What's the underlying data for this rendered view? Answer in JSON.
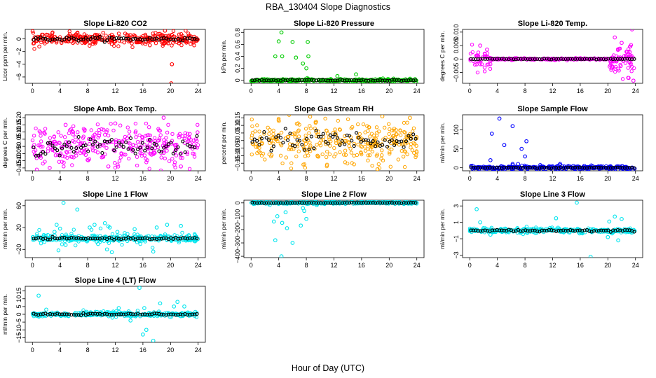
{
  "title": "RBA_130404  Slope Diagnostics",
  "xlabel": "Hour of Day (UTC)",
  "chart_data": [
    {
      "type": "scatter",
      "title": "Slope Li-820 CO2",
      "ylabel": "Licor ppm per min.",
      "xlim": [
        0,
        24
      ],
      "xticks": [
        0,
        4,
        8,
        12,
        16,
        20,
        24
      ],
      "ylim": [
        -7,
        1.5
      ],
      "yticks": [
        0,
        -2,
        -4,
        -6
      ],
      "color": "#ff0000",
      "spread": 0.45,
      "overlay_spread": 0.25,
      "outliers": [
        [
          19.2,
          1.3
        ],
        [
          20.1,
          -7.0
        ],
        [
          20.2,
          -4.0
        ],
        [
          1.0,
          -1.2
        ],
        [
          17.0,
          -1.0
        ],
        [
          6.5,
          0.9
        ]
      ]
    },
    {
      "type": "scatter",
      "title": "Slope Li-820 Pressure",
      "ylabel": "kPa per min.",
      "xlim": [
        0,
        24
      ],
      "xticks": [
        0,
        4,
        8,
        12,
        16,
        20,
        24
      ],
      "ylim": [
        -0.05,
        0.85
      ],
      "yticks": [
        0.0,
        0.2,
        0.4,
        0.6,
        0.8
      ],
      "color": "#00cc00",
      "spread": 0.012,
      "overlay_spread": 0.008,
      "outliers": [
        [
          4.4,
          0.8
        ],
        [
          4.0,
          0.65
        ],
        [
          6.0,
          0.64
        ],
        [
          8.2,
          0.64
        ],
        [
          3.5,
          0.4
        ],
        [
          4.5,
          0.4
        ],
        [
          6.5,
          0.38
        ],
        [
          8.3,
          0.4
        ],
        [
          8.0,
          0.2
        ],
        [
          7.5,
          0.28
        ],
        [
          15.2,
          0.1
        ],
        [
          12.5,
          0.07
        ],
        [
          23.9,
          -0.04
        ],
        [
          5.5,
          -0.02
        ]
      ]
    },
    {
      "type": "scatter",
      "title": "Slope Li-820 Temp.",
      "ylabel": "degrees C per min.",
      "xlim": [
        0,
        24
      ],
      "xticks": [
        0,
        4,
        8,
        12,
        16,
        20,
        24
      ],
      "ylim": [
        -0.009,
        0.011
      ],
      "yticks": [
        0.01,
        0.005,
        0.0,
        -0.005
      ],
      "color": "#ff00ff",
      "spread": 0.0002,
      "overlay_spread": 0.0001,
      "outliers": [
        [
          23.5,
          0.011
        ],
        [
          21.0,
          0.008
        ],
        [
          22.0,
          0.006
        ],
        [
          1.5,
          0.005
        ],
        [
          2.5,
          0.0035
        ],
        [
          23.0,
          -0.007
        ],
        [
          23.7,
          -0.008
        ],
        [
          1.0,
          -0.002
        ],
        [
          20.5,
          -0.004
        ]
      ]
    },
    {
      "type": "scatter",
      "title": "Slope Amb. Box Temp.",
      "ylabel": "degrees C per min.",
      "xlim": [
        0,
        24
      ],
      "xticks": [
        0,
        4,
        8,
        12,
        16,
        20,
        24
      ],
      "ylim": [
        -0.17,
        0.22
      ],
      "yticks": [
        -0.15,
        -0.1,
        -0.05,
        0.0,
        0.05,
        0.1,
        0.15,
        0.2
      ],
      "color": "#ff00ff",
      "spread": 0.07,
      "overlay_spread": 0.05,
      "outliers": [
        [
          19.0,
          0.2
        ],
        [
          12.0,
          0.16
        ],
        [
          4.8,
          0.15
        ],
        [
          2.5,
          -0.15
        ],
        [
          21.5,
          -0.14
        ],
        [
          11.0,
          -0.14
        ]
      ]
    },
    {
      "type": "scatter",
      "title": "Slope Gas Stream RH",
      "ylabel": "percent per min.",
      "xlim": [
        0,
        24
      ],
      "xticks": [
        0,
        4,
        8,
        12,
        16,
        20,
        24
      ],
      "ylim": [
        -0.2,
        0.17
      ],
      "yticks": [
        -0.15,
        -0.1,
        -0.05,
        0.0,
        0.05,
        0.1,
        0.15
      ],
      "color": "#ffa500",
      "spread": 0.07,
      "overlay_spread": 0.05,
      "outliers": [
        [
          5.5,
          0.17
        ],
        [
          19.0,
          0.16
        ],
        [
          18.3,
          -0.19
        ],
        [
          23.0,
          0.15
        ],
        [
          11.0,
          -0.16
        ]
      ]
    },
    {
      "type": "scatter",
      "title": "Slope Sample Flow",
      "ylabel": "ml/min per min.",
      "xlim": [
        0,
        24
      ],
      "xticks": [
        0,
        4,
        8,
        12,
        16,
        20,
        24
      ],
      "ylim": [
        -8,
        140
      ],
      "yticks": [
        0,
        50,
        100
      ],
      "color": "#0000ff",
      "spread": 2.0,
      "overlay_spread": 1.0,
      "outliers": [
        [
          4.3,
          130
        ],
        [
          6.2,
          110
        ],
        [
          3.2,
          90
        ],
        [
          5.0,
          60
        ],
        [
          7.5,
          50
        ],
        [
          8.2,
          70
        ],
        [
          8.0,
          30
        ],
        [
          3.0,
          20
        ],
        [
          7.0,
          10
        ],
        [
          13.0,
          8
        ],
        [
          12.8,
          5
        ],
        [
          11.5,
          4
        ],
        [
          0.2,
          5
        ],
        [
          2.0,
          3
        ],
        [
          15.0,
          5
        ],
        [
          17.6,
          6
        ],
        [
          19.0,
          4
        ]
      ]
    },
    {
      "type": "scatter",
      "title": "Slope Line 1 Flow",
      "ylabel": "ml/min per min.",
      "xlim": [
        0,
        24
      ],
      "xticks": [
        0,
        4,
        8,
        12,
        16,
        20,
        24
      ],
      "ylim": [
        -35,
        70
      ],
      "yticks": [
        -20,
        20,
        60
      ],
      "color": "#00e5ee",
      "spread": 3.0,
      "overlay_spread": 1.5,
      "outliers": [
        [
          4.5,
          65
        ],
        [
          6.5,
          53
        ],
        [
          3.5,
          25
        ],
        [
          3.2,
          12
        ],
        [
          4.0,
          18
        ],
        [
          4.8,
          -12
        ],
        [
          8.3,
          20
        ],
        [
          9.0,
          25
        ],
        [
          10.5,
          28
        ],
        [
          11.0,
          22
        ],
        [
          11.2,
          20
        ],
        [
          11.5,
          -25
        ],
        [
          10.8,
          -20
        ],
        [
          9.5,
          -10
        ],
        [
          17.5,
          -24
        ],
        [
          18.0,
          20
        ],
        [
          19.5,
          25
        ],
        [
          21.5,
          23
        ],
        [
          14.8,
          17
        ],
        [
          12.3,
          12
        ]
      ]
    },
    {
      "type": "scatter",
      "title": "Slope Line 2 Flow",
      "ylabel": "ml/min per min.",
      "xlim": [
        0,
        24
      ],
      "xticks": [
        0,
        4,
        8,
        12,
        16,
        20,
        24
      ],
      "ylim": [
        -410,
        20
      ],
      "yticks": [
        0,
        -100,
        -200,
        -300,
        -400
      ],
      "color": "#00e5ee",
      "spread": 4.0,
      "overlay_spread": 2.0,
      "outliers": [
        [
          4.4,
          -400
        ],
        [
          3.5,
          -280
        ],
        [
          6.0,
          -300
        ],
        [
          4.5,
          -150
        ],
        [
          5.2,
          -190
        ],
        [
          3.3,
          -140
        ],
        [
          7.2,
          -170
        ],
        [
          8.0,
          -120
        ],
        [
          7.7,
          -60
        ],
        [
          5.0,
          -70
        ],
        [
          3.8,
          -100
        ],
        [
          7.5,
          -40
        ]
      ]
    },
    {
      "type": "scatter",
      "title": "Slope Line 3 Flow",
      "ylabel": "ml/min per min.",
      "xlim": [
        0,
        24
      ],
      "xticks": [
        0,
        4,
        8,
        12,
        16,
        20,
        24
      ],
      "ylim": [
        -3.3,
        3.7
      ],
      "yticks": [
        3,
        1,
        -1,
        -3
      ],
      "color": "#00e5ee",
      "spread": 0.15,
      "overlay_spread": 0.1,
      "outliers": [
        [
          15.5,
          3.4
        ],
        [
          1.0,
          2.6
        ],
        [
          17.5,
          -3.2
        ],
        [
          1.5,
          1.0
        ],
        [
          21.0,
          1.7
        ],
        [
          22.0,
          1.4
        ],
        [
          12.5,
          1.5
        ],
        [
          20.2,
          1.1
        ],
        [
          3.0,
          -0.5
        ],
        [
          20.0,
          -0.8
        ],
        [
          21.5,
          -1.2
        ]
      ]
    },
    {
      "type": "scatter",
      "title": "Slope Line 4 (LT) Flow",
      "ylabel": "ml/min per min.",
      "xlim": [
        0,
        24
      ],
      "xticks": [
        0,
        4,
        8,
        12,
        16,
        20,
        24
      ],
      "ylim": [
        -18,
        18
      ],
      "yticks": [
        15,
        10,
        5,
        0,
        -5,
        -10,
        -15
      ],
      "color": "#00e5ee",
      "spread": 0.8,
      "overlay_spread": 0.4,
      "outliers": [
        [
          15.5,
          17
        ],
        [
          17.5,
          -17
        ],
        [
          0.9,
          12
        ],
        [
          16.0,
          -13
        ],
        [
          16.5,
          -10
        ],
        [
          21.0,
          8
        ],
        [
          18.5,
          7
        ],
        [
          22.0,
          5
        ],
        [
          12.5,
          4
        ],
        [
          2.0,
          3
        ],
        [
          14.2,
          -4
        ],
        [
          16.2,
          4
        ],
        [
          20.5,
          5
        ]
      ]
    }
  ]
}
